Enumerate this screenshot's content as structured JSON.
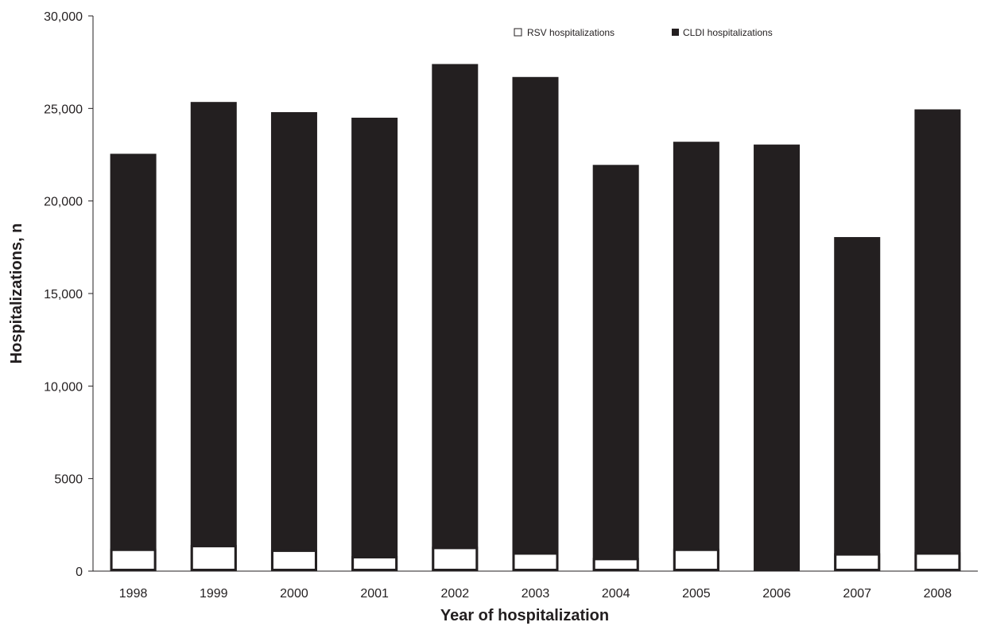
{
  "chart_data": {
    "type": "bar",
    "title": "",
    "xlabel": "Year of hospitalization",
    "ylabel": "Hospitalizations, n",
    "categories": [
      "1998",
      "1999",
      "2000",
      "2001",
      "2002",
      "2003",
      "2004",
      "2005",
      "2006",
      "2007",
      "2008"
    ],
    "series": [
      {
        "name": "CLDI hospitalizations",
        "color": "#231f20",
        "values": [
          22550,
          25350,
          24800,
          24500,
          27400,
          26700,
          21950,
          23200,
          23050,
          18050,
          24950
        ]
      },
      {
        "name": "RSV hospitalizations",
        "color": "#ffffff",
        "values": [
          1150,
          1350,
          1100,
          750,
          1250,
          950,
          650,
          1150,
          50,
          900,
          950
        ]
      }
    ],
    "ylim": [
      0,
      30000
    ],
    "yticks": [
      {
        "value": 0,
        "label": "0"
      },
      {
        "value": 5000,
        "label": "5000"
      },
      {
        "value": 10000,
        "label": "10,000"
      },
      {
        "value": 15000,
        "label": "15,000"
      },
      {
        "value": 20000,
        "label": "20,000"
      },
      {
        "value": 25000,
        "label": "25,000"
      },
      {
        "value": 30000,
        "label": "30,000"
      }
    ],
    "grid": false,
    "legend_position": "top-right"
  }
}
